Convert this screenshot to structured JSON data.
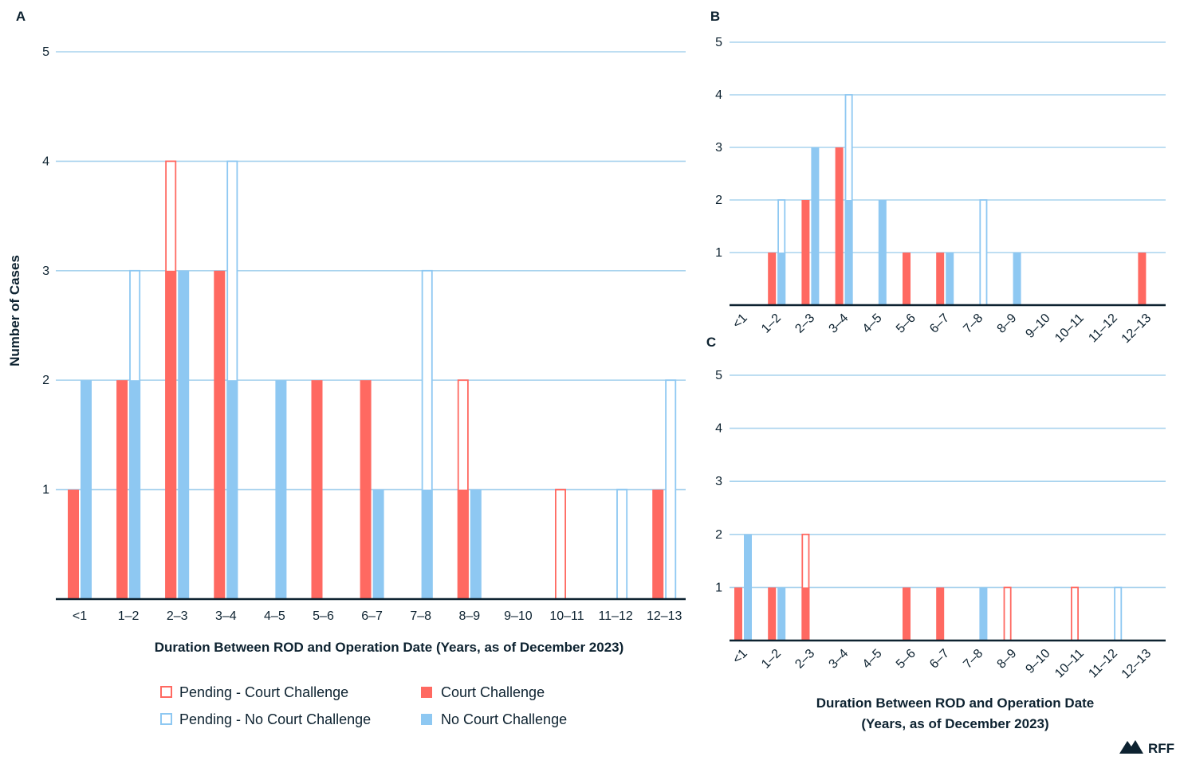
{
  "legend": {
    "pending_court": "Pending - Court Challenge",
    "court": "Court Challenge",
    "pending_no_court": "Pending - No Court Challenge",
    "no_court": "No Court Challenge"
  },
  "brand": {
    "name": "RFF",
    "logo": "mountain-logo-icon"
  },
  "colors": {
    "court": "#ff6961",
    "no_court": "#8ec8f2",
    "grid": "#a9d3ee",
    "axis": "#0d2230",
    "text": "#0d2230"
  },
  "chart_data": [
    {
      "id": "A",
      "type": "bar",
      "label": "A",
      "ylabel": "Number of Cases",
      "xlabel_lines": [
        "Duration Between ROD and Operation Date (Years, as of December 2023)"
      ],
      "ylim": [
        0,
        5
      ],
      "yticks": [
        1,
        2,
        3,
        4,
        5
      ],
      "categories": [
        "<1",
        "1–2",
        "2–3",
        "3–4",
        "4–5",
        "5–6",
        "6–7",
        "7–8",
        "8–9",
        "9–10",
        "10–11",
        "11–12",
        "12–13"
      ],
      "series": [
        {
          "name": "Court Challenge",
          "values": [
            1,
            2,
            3,
            3,
            0,
            2,
            2,
            0,
            1,
            0,
            0,
            0,
            1
          ]
        },
        {
          "name": "Pending - Court Challenge",
          "values": [
            1,
            2,
            4,
            3,
            0,
            2,
            2,
            0,
            2,
            0,
            1,
            0,
            1
          ]
        },
        {
          "name": "No Court Challenge",
          "values": [
            2,
            2,
            3,
            2,
            2,
            0,
            1,
            1,
            1,
            0,
            0,
            0,
            0
          ]
        },
        {
          "name": "Pending - No Court Challenge",
          "values": [
            2,
            3,
            3,
            4,
            2,
            0,
            1,
            3,
            1,
            0,
            0,
            1,
            2
          ]
        }
      ]
    },
    {
      "id": "B",
      "type": "bar",
      "label": "B",
      "ylim": [
        0,
        5
      ],
      "yticks": [
        1,
        2,
        3,
        4,
        5
      ],
      "categories": [
        "<1",
        "1–2",
        "2–3",
        "3–4",
        "4–5",
        "5–6",
        "6–7",
        "7–8",
        "8–9",
        "9–10",
        "10–11",
        "11–12",
        "12–13"
      ],
      "series": [
        {
          "name": "Court Challenge",
          "values": [
            0,
            1,
            2,
            3,
            0,
            1,
            1,
            0,
            0,
            0,
            0,
            0,
            1
          ]
        },
        {
          "name": "Pending - Court Challenge",
          "values": [
            0,
            1,
            2,
            3,
            0,
            1,
            1,
            0,
            0,
            0,
            0,
            0,
            1
          ]
        },
        {
          "name": "No Court Challenge",
          "values": [
            0,
            1,
            3,
            2,
            2,
            0,
            1,
            0,
            1,
            0,
            0,
            0,
            0
          ]
        },
        {
          "name": "Pending - No Court Challenge",
          "values": [
            0,
            2,
            3,
            4,
            2,
            0,
            1,
            2,
            1,
            0,
            0,
            0,
            0
          ]
        }
      ]
    },
    {
      "id": "C",
      "type": "bar",
      "label": "C",
      "xlabel_lines": [
        "Duration Between ROD and Operation Date",
        "(Years, as of December 2023)"
      ],
      "ylim": [
        0,
        5
      ],
      "yticks": [
        1,
        2,
        3,
        4,
        5
      ],
      "categories": [
        "<1",
        "1–2",
        "2–3",
        "3–4",
        "4–5",
        "5–6",
        "6–7",
        "7–8",
        "8–9",
        "9–10",
        "10–11",
        "11–12",
        "12–13"
      ],
      "series": [
        {
          "name": "Court Challenge",
          "values": [
            1,
            1,
            1,
            0,
            0,
            1,
            1,
            0,
            0,
            0,
            0,
            0,
            0
          ]
        },
        {
          "name": "Pending - Court Challenge",
          "values": [
            1,
            1,
            2,
            0,
            0,
            1,
            1,
            0,
            1,
            0,
            1,
            0,
            0
          ]
        },
        {
          "name": "No Court Challenge",
          "values": [
            2,
            1,
            0,
            0,
            0,
            0,
            0,
            1,
            0,
            0,
            0,
            0,
            0
          ]
        },
        {
          "name": "Pending - No Court Challenge",
          "values": [
            2,
            1,
            0,
            0,
            0,
            0,
            0,
            1,
            0,
            0,
            0,
            1,
            0
          ]
        }
      ]
    }
  ]
}
